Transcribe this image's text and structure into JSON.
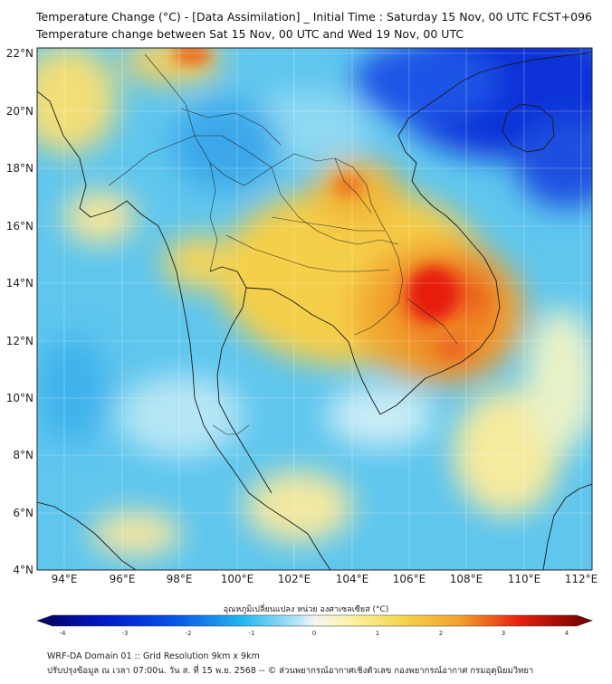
{
  "title_line1": "Temperature Change (°C) - [Data Assimilation] _ Initial Time : Saturday 15 Nov, 00 UTC FCST+096",
  "title_line2": "Temperature change between Sat 15 Nov, 00 UTC and Wed 19 Nov, 00 UTC",
  "lat_labels": [
    "22°N",
    "20°N",
    "18°N",
    "16°N",
    "14°N",
    "12°N",
    "10°N",
    "8°N",
    "6°N",
    "4°N"
  ],
  "lon_labels": [
    "94°E",
    "96°E",
    "98°E",
    "100°E",
    "102°E",
    "104°E",
    "106°E",
    "108°E",
    "110°E",
    "112°E"
  ],
  "colorbar": {
    "label": "อุณหภูมิเปลี่ยนแปลง หน่วย องศาเซลเซียส (°C)",
    "ticks": [
      "-4",
      "-3",
      "-2",
      "-1",
      "0",
      "1",
      "2",
      "3",
      "4"
    ],
    "min": -4,
    "max": 4
  },
  "footer_line1": "WRF-DA Domain 01 :: Grid Resolution 9km x 9km",
  "footer_line2": "ปรับปรุงข้อมูล ณ เวลา 07:00น. วัน ส. ที่ 15 พ.ย. 2568 -- © ส่วนพยากรณ์อากาศเชิงตัวเลข กองพยากรณ์อากาศ กรมอุตุนิยมวิทยา"
}
